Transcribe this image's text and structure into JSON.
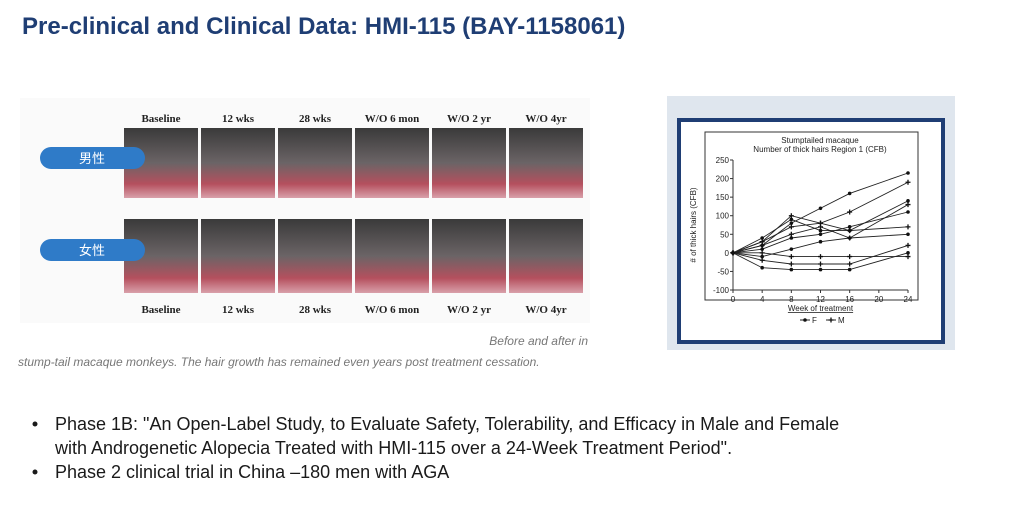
{
  "header": {
    "title": "Pre-clinical and Clinical Data: HMI-115 (BAY-1158061)"
  },
  "photos": {
    "top_labels": [
      "Baseline",
      "12 wks",
      "28 wks",
      "W/O 6 mon",
      "W/O 2 yr",
      "W/O 4yr"
    ],
    "bottom_labels": [
      "Baseline",
      "12 wks",
      "28 wks",
      "W/O 6 mon",
      "W/O 2 yr",
      "W/O 4yr"
    ],
    "rows": [
      "男性",
      "女性"
    ],
    "caption": [
      "Before and after in",
      "stump-tail macaque monkeys. The hair growth has remained even years post treatment cessation."
    ]
  },
  "chart": {
    "type": "line",
    "title": [
      "Stumptailed macaque",
      "Number of thick hairs Region 1 (CFB)"
    ],
    "y_label": "# of thick hairs (CFB)",
    "x_label": "Week of treatment",
    "x": [
      0,
      4,
      8,
      12,
      16,
      24
    ],
    "xlim": [
      0,
      24
    ],
    "xticks": [
      0,
      4,
      8,
      12,
      16,
      20,
      24
    ],
    "ylim": [
      -100,
      250
    ],
    "yticks": [
      -100,
      -50,
      0,
      50,
      100,
      150,
      200,
      250
    ],
    "series": [
      {
        "name": "F",
        "lines": [
          [
            0,
            20,
            80,
            120,
            160,
            215
          ],
          [
            0,
            40,
            90,
            60,
            60,
            140
          ],
          [
            0,
            10,
            40,
            50,
            70,
            110
          ],
          [
            0,
            -10,
            10,
            30,
            40,
            50
          ],
          [
            0,
            -40,
            -45,
            -45,
            -45,
            0
          ]
        ]
      },
      {
        "name": "M",
        "lines": [
          [
            0,
            30,
            70,
            80,
            110,
            190
          ],
          [
            0,
            20,
            50,
            70,
            40,
            130
          ],
          [
            0,
            30,
            100,
            80,
            60,
            70
          ],
          [
            0,
            -20,
            -30,
            -30,
            -30,
            20
          ],
          [
            0,
            0,
            -10,
            -10,
            -10,
            -10
          ]
        ]
      }
    ]
  },
  "bullets": [
    [
      "Phase 1B: \"An Open-Label Study, to Evaluate Safety, Tolerability, and Efficacy in Male and Female",
      "with Androgenetic Alopecia Treated with HMI-115 over a 24-Week Treatment Period\"."
    ],
    [
      "Phase 2 clinical trial in China –180 men with AGA"
    ]
  ]
}
